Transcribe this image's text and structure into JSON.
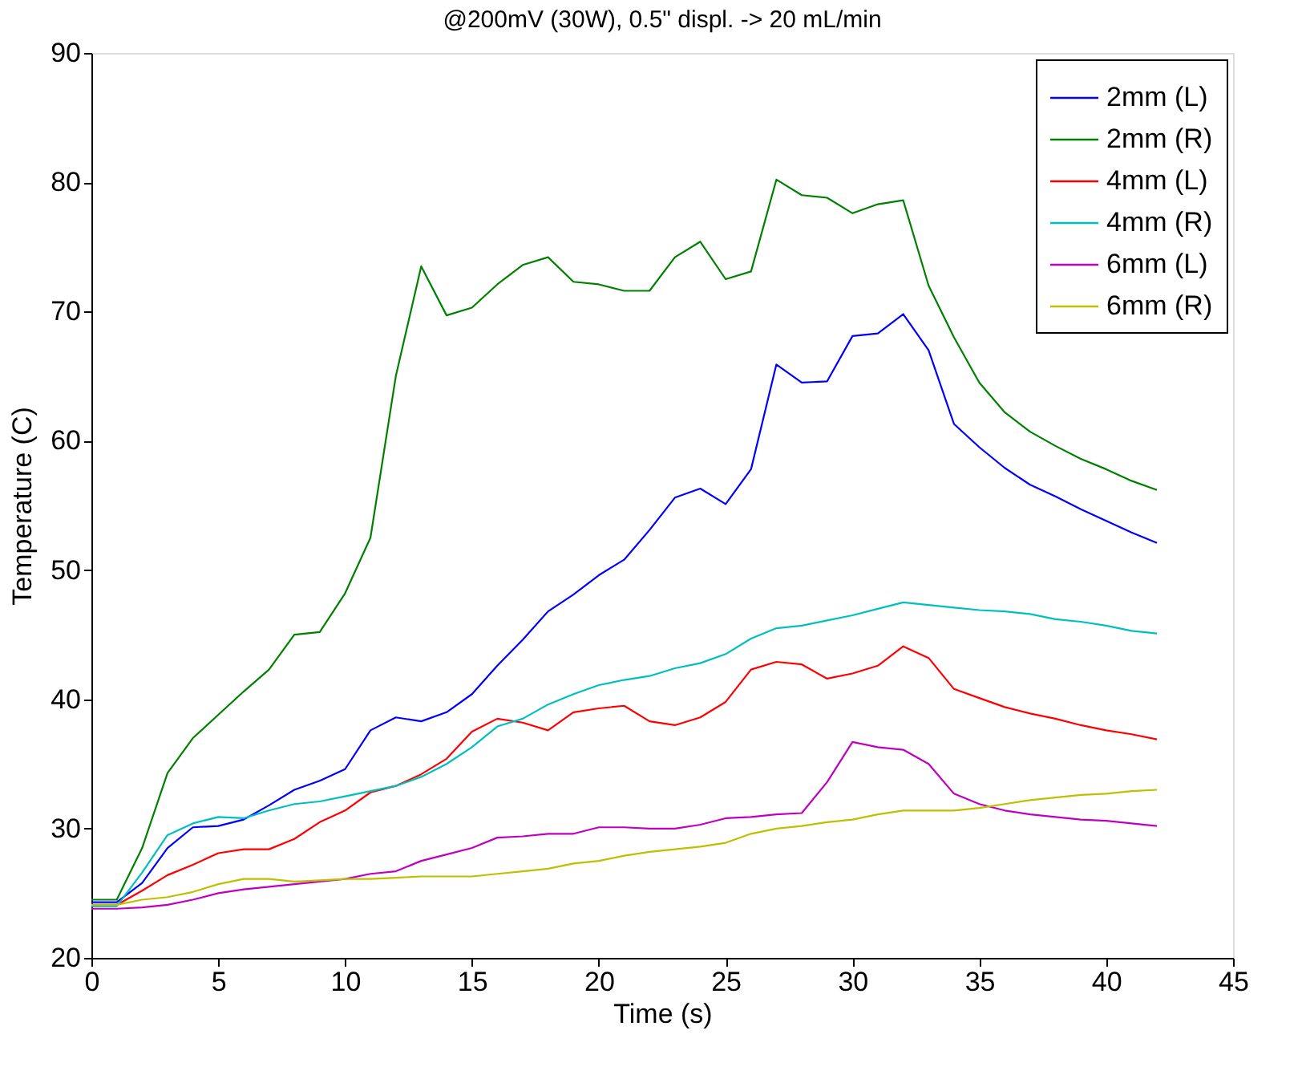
{
  "chart_data": {
    "type": "line",
    "title": "@200mV (30W), 0.5\" displ. -> 20 mL/min",
    "xlabel": "Time (s)",
    "ylabel": "Temperature (C)",
    "x": [
      0,
      1,
      2,
      3,
      4,
      5,
      6,
      7,
      8,
      9,
      10,
      11,
      12,
      13,
      14,
      15,
      16,
      17,
      18,
      19,
      20,
      21,
      22,
      23,
      24,
      25,
      26,
      27,
      28,
      29,
      30,
      31,
      32,
      33,
      34,
      35,
      36,
      37,
      38,
      39,
      40,
      41,
      42
    ],
    "series": [
      {
        "name": "2mm (L)",
        "color": "#0000ff",
        "values": [
          24.3,
          24.3,
          25.8,
          28.5,
          30.1,
          30.2,
          30.7,
          31.8,
          33,
          33.7,
          34.6,
          37.6,
          38.6,
          38.3,
          39,
          40.4,
          42.6,
          44.6,
          46.8,
          48.1,
          49.6,
          50.8,
          53.1,
          55.6,
          56.3,
          55.1,
          57.8,
          65.9,
          64.5,
          64.6,
          68.1,
          68.3,
          69.8,
          67,
          61.3,
          59.5,
          57.9,
          56.6,
          55.7,
          54.7,
          53.8,
          52.9,
          52.1
        ]
      },
      {
        "name": "2mm (R)",
        "color": "#008000",
        "values": [
          24.5,
          24.5,
          28.5,
          34.3,
          37,
          38.8,
          40.6,
          42.3,
          45,
          45.2,
          48.2,
          52.5,
          65,
          73.5,
          69.7,
          70.3,
          72.1,
          73.6,
          74.2,
          72.3,
          72.1,
          71.6,
          71.6,
          74.2,
          75.4,
          72.5,
          73.1,
          80.2,
          79,
          78.8,
          77.6,
          78.3,
          78.6,
          72,
          68,
          64.5,
          62.2,
          60.7,
          59.6,
          58.6,
          57.8,
          56.9,
          56.2
        ]
      },
      {
        "name": "4mm (L)",
        "color": "#ff0000",
        "values": [
          24.1,
          24.1,
          25.2,
          26.4,
          27.2,
          28.1,
          28.4,
          28.4,
          29.2,
          30.5,
          31.4,
          32.8,
          33.3,
          34.2,
          35.4,
          37.5,
          38.5,
          38.2,
          37.6,
          39,
          39.3,
          39.5,
          38.3,
          38,
          38.6,
          39.8,
          42.3,
          42.9,
          42.7,
          41.6,
          42,
          42.6,
          44.1,
          43.2,
          40.8,
          40.1,
          39.4,
          38.9,
          38.5,
          38,
          37.6,
          37.3,
          36.9
        ]
      },
      {
        "name": "4mm (R)",
        "color": "#00bfbf",
        "values": [
          24,
          24,
          26.6,
          29.5,
          30.4,
          30.9,
          30.8,
          31.4,
          31.9,
          32.1,
          32.5,
          32.9,
          33.3,
          34,
          35,
          36.3,
          37.9,
          38.5,
          39.6,
          40.4,
          41.1,
          41.5,
          41.8,
          42.4,
          42.8,
          43.5,
          44.7,
          45.5,
          45.7,
          46.1,
          46.5,
          47,
          47.5,
          47.3,
          47.1,
          46.9,
          46.8,
          46.6,
          46.2,
          46,
          45.7,
          45.3,
          45.1
        ]
      },
      {
        "name": "6mm (L)",
        "color": "#bf00bf",
        "values": [
          23.8,
          23.8,
          23.9,
          24.1,
          24.5,
          25,
          25.3,
          25.5,
          25.7,
          25.9,
          26.1,
          26.5,
          26.7,
          27.5,
          28,
          28.5,
          29.3,
          29.4,
          29.6,
          29.6,
          30.1,
          30.1,
          30,
          30,
          30.3,
          30.8,
          30.9,
          31.1,
          31.2,
          33.6,
          36.7,
          36.3,
          36.1,
          35,
          32.7,
          31.9,
          31.4,
          31.1,
          30.9,
          30.7,
          30.6,
          30.4,
          30.2
        ]
      },
      {
        "name": "6mm (R)",
        "color": "#bfbf00",
        "values": [
          24.1,
          24.1,
          24.5,
          24.7,
          25.1,
          25.7,
          26.1,
          26.1,
          25.9,
          26,
          26.1,
          26.1,
          26.2,
          26.3,
          26.3,
          26.3,
          26.5,
          26.7,
          26.9,
          27.3,
          27.5,
          27.9,
          28.2,
          28.4,
          28.6,
          28.9,
          29.6,
          30,
          30.2,
          30.5,
          30.7,
          31.1,
          31.4,
          31.4,
          31.4,
          31.6,
          31.9,
          32.2,
          32.4,
          32.6,
          32.7,
          32.9,
          33
        ]
      }
    ],
    "xlim": [
      0,
      45
    ],
    "xticks": [
      0,
      5,
      10,
      15,
      20,
      25,
      30,
      35,
      40,
      45
    ],
    "ylim": [
      20,
      90
    ],
    "yticks": [
      20,
      30,
      40,
      50,
      60,
      70,
      80,
      90
    ],
    "grid": false,
    "legend": "top right",
    "marker": "none",
    "line_style": "solid"
  }
}
